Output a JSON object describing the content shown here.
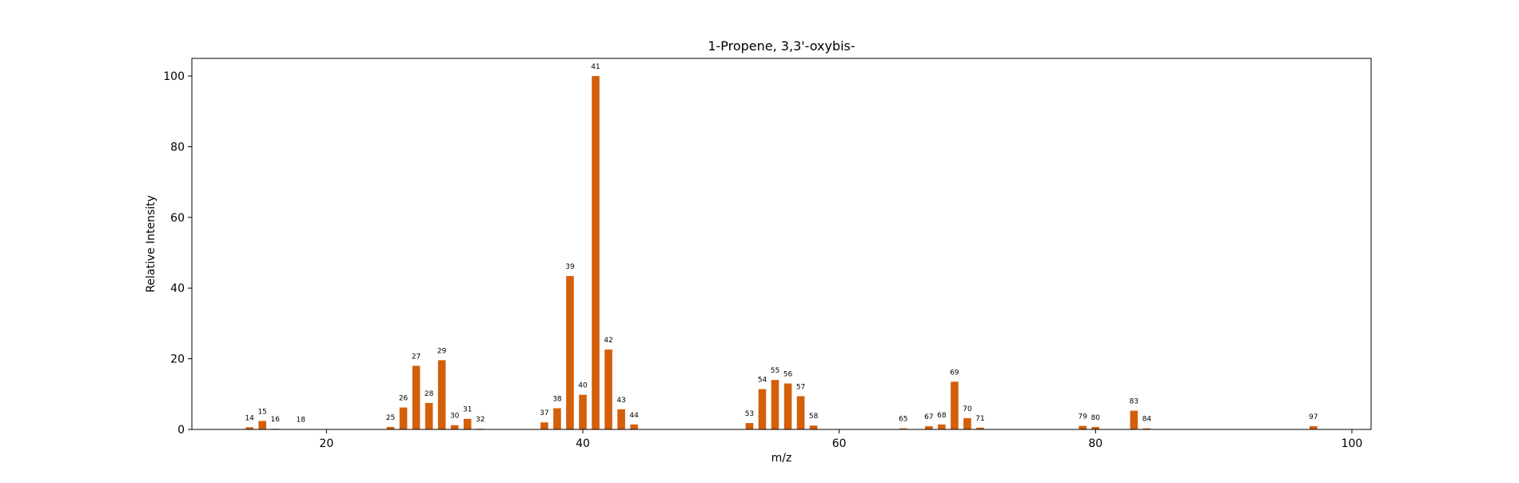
{
  "chart_data": {
    "type": "bar",
    "title": "1-Propene, 3,3'-oxybis-",
    "xlabel": "m/z",
    "ylabel": "Relative Intensity",
    "xlim": [
      9.5,
      101.5
    ],
    "ylim": [
      0,
      105
    ],
    "xticks": [
      20,
      40,
      60,
      80,
      100
    ],
    "yticks": [
      0,
      20,
      40,
      60,
      80,
      100
    ],
    "bar_color": "#d35f0a",
    "grid": false,
    "legend": "none",
    "peaks": [
      {
        "mz": 14,
        "intensity": 0.6
      },
      {
        "mz": 15,
        "intensity": 2.4
      },
      {
        "mz": 16,
        "intensity": 0.2
      },
      {
        "mz": 18,
        "intensity": 0.1
      },
      {
        "mz": 25,
        "intensity": 0.7
      },
      {
        "mz": 26,
        "intensity": 6.2
      },
      {
        "mz": 27,
        "intensity": 18.0
      },
      {
        "mz": 28,
        "intensity": 7.5
      },
      {
        "mz": 29,
        "intensity": 19.6
      },
      {
        "mz": 30,
        "intensity": 1.2
      },
      {
        "mz": 31,
        "intensity": 3.0
      },
      {
        "mz": 32,
        "intensity": 0.2
      },
      {
        "mz": 37,
        "intensity": 2.0
      },
      {
        "mz": 38,
        "intensity": 6.0
      },
      {
        "mz": 39,
        "intensity": 43.4
      },
      {
        "mz": 40,
        "intensity": 9.8
      },
      {
        "mz": 41,
        "intensity": 100.0
      },
      {
        "mz": 42,
        "intensity": 22.6
      },
      {
        "mz": 43,
        "intensity": 5.7
      },
      {
        "mz": 44,
        "intensity": 1.4
      },
      {
        "mz": 53,
        "intensity": 1.8
      },
      {
        "mz": 54,
        "intensity": 11.4
      },
      {
        "mz": 55,
        "intensity": 14.0
      },
      {
        "mz": 56,
        "intensity": 13.0
      },
      {
        "mz": 57,
        "intensity": 9.4
      },
      {
        "mz": 58,
        "intensity": 1.1
      },
      {
        "mz": 65,
        "intensity": 0.3
      },
      {
        "mz": 67,
        "intensity": 0.9
      },
      {
        "mz": 68,
        "intensity": 1.4
      },
      {
        "mz": 69,
        "intensity": 13.5
      },
      {
        "mz": 70,
        "intensity": 3.2
      },
      {
        "mz": 71,
        "intensity": 0.5
      },
      {
        "mz": 79,
        "intensity": 1.0
      },
      {
        "mz": 80,
        "intensity": 0.7
      },
      {
        "mz": 83,
        "intensity": 5.3
      },
      {
        "mz": 84,
        "intensity": 0.3
      },
      {
        "mz": 97,
        "intensity": 0.9
      }
    ]
  }
}
